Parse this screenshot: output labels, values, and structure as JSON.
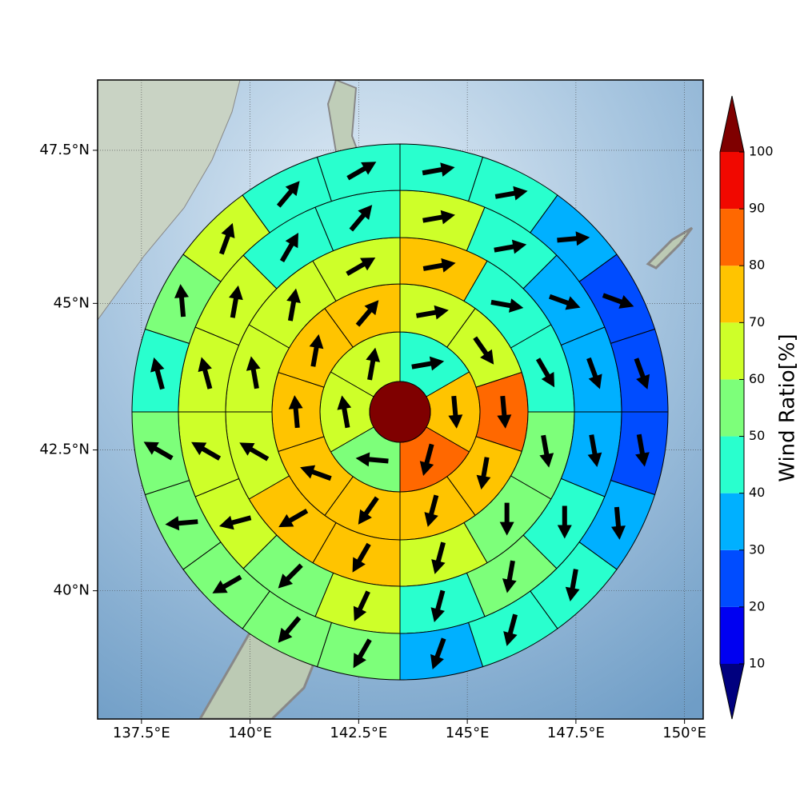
{
  "chart_data": {
    "type": "polar-sector-map",
    "xlim": [
      136.49,
      150.43
    ],
    "ylim": [
      37.64,
      48.61
    ],
    "xticks": [
      {
        "value": 137.5,
        "label": "137.5°E"
      },
      {
        "value": 140,
        "label": "140°E"
      },
      {
        "value": 142.5,
        "label": "142.5°E"
      },
      {
        "value": 145,
        "label": "145°E"
      },
      {
        "value": 147.5,
        "label": "147.5°E"
      },
      {
        "value": 150,
        "label": "150°E"
      }
    ],
    "yticks": [
      {
        "value": 40,
        "label": "40°N"
      },
      {
        "value": 42.5,
        "label": "42.5°N"
      },
      {
        "value": 45,
        "label": "45°N"
      },
      {
        "value": 47.5,
        "label": "47.5°N"
      }
    ],
    "grid": true,
    "colorbar": {
      "label": "Wind Ratio[%]",
      "bounds": [
        10,
        20,
        30,
        40,
        50,
        60,
        70,
        80,
        90,
        100
      ],
      "colors": [
        "#0000f1",
        "#004cff",
        "#00b0ff",
        "#29ffce",
        "#7dff7a",
        "#ceff29",
        "#ffc400",
        "#ff6800",
        "#f10800"
      ],
      "under": "#00007f",
      "over": "#7f0000"
    },
    "rings": [
      {
        "values": [
          45,
          75,
          85,
          55,
          65,
          65
        ],
        "directions": [
          80,
          175,
          195,
          275,
          350,
          10
        ]
      },
      {
        "values": [
          65,
          65,
          85,
          75,
          75,
          75,
          75,
          75,
          75,
          75
        ],
        "directions": [
          80,
          145,
          175,
          190,
          195,
          215,
          290,
          355,
          10,
          40
        ]
      },
      {
        "values": [
          75,
          45,
          45,
          55,
          55,
          65,
          75,
          75,
          65,
          65,
          65,
          65
        ],
        "directions": [
          80,
          100,
          150,
          170,
          180,
          195,
          210,
          240,
          300,
          350,
          10,
          60
        ]
      },
      {
        "values": [
          65,
          45,
          35,
          35,
          35,
          45,
          55,
          45,
          65,
          55,
          65,
          65,
          65,
          65,
          45,
          45
        ],
        "directions": [
          80,
          80,
          110,
          160,
          170,
          180,
          190,
          195,
          205,
          225,
          255,
          300,
          345,
          10,
          30,
          40
        ]
      },
      {
        "values": [
          45,
          45,
          35,
          25,
          25,
          25,
          35,
          45,
          45,
          35,
          55,
          55,
          55,
          55,
          55,
          45,
          55,
          65,
          45,
          45
        ],
        "directions": [
          80,
          80,
          85,
          110,
          160,
          170,
          175,
          190,
          195,
          200,
          210,
          220,
          240,
          265,
          300,
          345,
          355,
          20,
          40,
          60
        ]
      }
    ]
  }
}
